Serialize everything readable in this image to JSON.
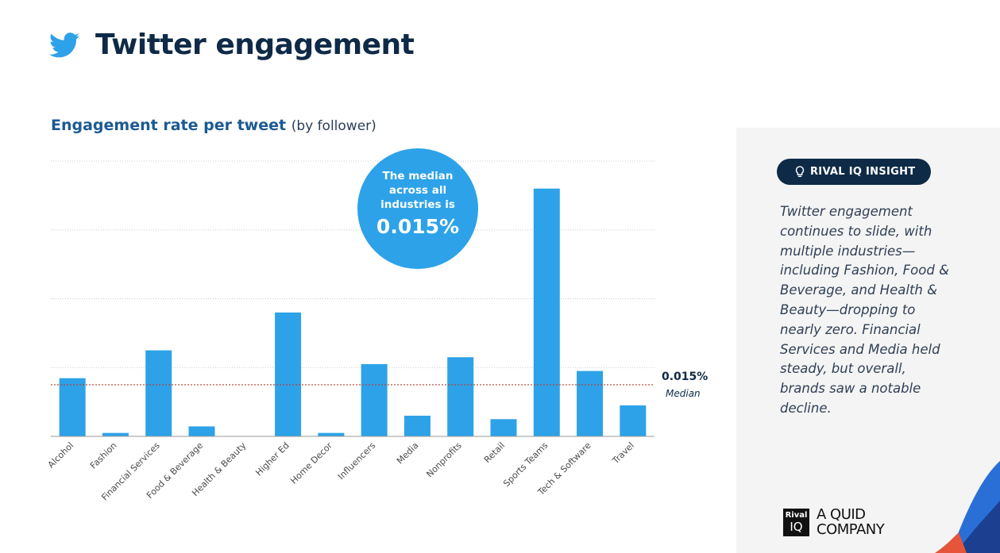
{
  "header": {
    "title": "Twitter engagement",
    "icon": "twitter-bird-icon",
    "icon_color": "#2da2e8"
  },
  "chart_title": {
    "main": "Engagement rate per tweet",
    "sub": "(by follower)"
  },
  "bubble": {
    "text": "The median across all industries is",
    "value": "0.015%",
    "color": "#2da2e8"
  },
  "median_label": {
    "value": "0.015%",
    "sub": "Median"
  },
  "chart_data": {
    "type": "bar",
    "title": "Engagement rate per tweet",
    "subtitle": "(by follower)",
    "unit": "%",
    "categories": [
      "Alcohol",
      "Fashion",
      "Financial Services",
      "Food & Beverage",
      "Health & Beauty",
      "Higher Ed",
      "Home Decor",
      "Influencers",
      "Media",
      "Nonprofits",
      "Retail",
      "Sports Teams",
      "Tech & Software",
      "Travel"
    ],
    "values": [
      0.0169,
      0.001,
      0.025,
      0.0029,
      0,
      0.036,
      0.001,
      0.021,
      0.006,
      0.023,
      0.005,
      0.072,
      0.019,
      0.009
    ],
    "median": 0.015,
    "ylim": [
      0,
      0.08
    ],
    "grid": true,
    "bar_color": "#2da2e8",
    "median_line_color": "#c0392b"
  },
  "insight": {
    "label": "RIVAL IQ INSIGHT",
    "icon": "lightbulb-icon",
    "text": "Twitter engagement continues to slide, with multiple industries—including Fashion, Food & Beverage, and Health & Beauty—dropping to nearly zero. Financial Services and Media held steady, but overall, brands saw a notable decline."
  },
  "logo": {
    "box_line1": "Rival",
    "box_line2": "IQ",
    "text_line1": "A QUID",
    "text_line2": "COMPANY"
  }
}
